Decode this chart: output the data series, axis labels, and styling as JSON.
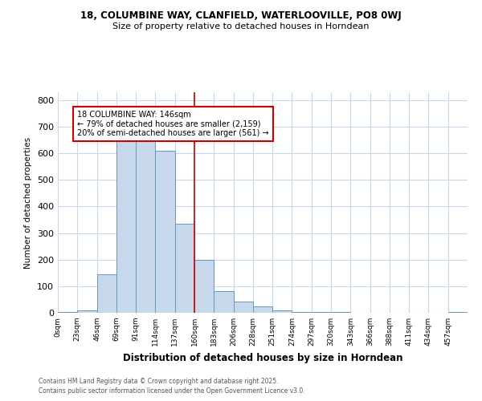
{
  "title1": "18, COLUMBINE WAY, CLANFIELD, WATERLOOVILLE, PO8 0WJ",
  "title2": "Size of property relative to detached houses in Horndean",
  "xlabel": "Distribution of detached houses by size in Horndean",
  "ylabel": "Number of detached properties",
  "annotation_title": "18 COLUMBINE WAY: 146sqm",
  "annotation_line1": "← 79% of detached houses are smaller (2,159)",
  "annotation_line2": "20% of semi-detached houses are larger (561) →",
  "bin_labels": [
    "0sqm",
    "23sqm",
    "46sqm",
    "69sqm",
    "91sqm",
    "114sqm",
    "137sqm",
    "160sqm",
    "183sqm",
    "206sqm",
    "228sqm",
    "251sqm",
    "274sqm",
    "297sqm",
    "320sqm",
    "343sqm",
    "366sqm",
    "388sqm",
    "411sqm",
    "434sqm",
    "457sqm"
  ],
  "bar_heights": [
    3,
    8,
    145,
    645,
    645,
    610,
    335,
    200,
    82,
    42,
    25,
    10,
    3,
    2,
    2,
    1,
    1,
    1,
    0,
    0,
    2
  ],
  "bar_color": "#c8d8ec",
  "bar_edge_color": "#6699bb",
  "red_line_x": 7,
  "red_line_color": "#cc0000",
  "annotation_box_color": "#ffffff",
  "annotation_box_edge": "#cc0000",
  "ylim": [
    0,
    830
  ],
  "yticks": [
    0,
    100,
    200,
    300,
    400,
    500,
    600,
    700,
    800
  ],
  "footer1": "Contains HM Land Registry data © Crown copyright and database right 2025.",
  "footer2": "Contains public sector information licensed under the Open Government Licence v3.0.",
  "bg_color": "#ffffff",
  "grid_color": "#c8d8ec"
}
